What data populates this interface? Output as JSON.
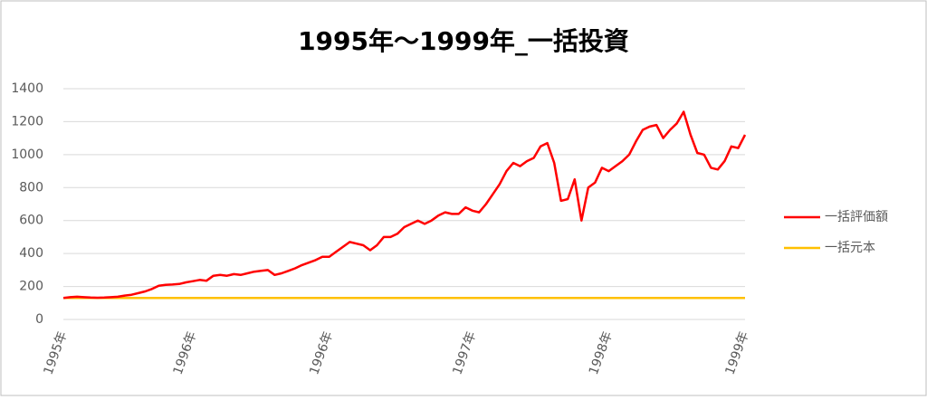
{
  "chart_data": {
    "type": "line",
    "title": "1995年～1999年_一括投資",
    "categories": [
      "1995年",
      null,
      null,
      null,
      null,
      null,
      null,
      null,
      null,
      null,
      null,
      null,
      null,
      null,
      null,
      null,
      null,
      null,
      null,
      "1996年",
      null,
      null,
      null,
      null,
      null,
      null,
      null,
      null,
      null,
      null,
      null,
      null,
      null,
      null,
      null,
      null,
      null,
      null,
      null,
      "1996年",
      null,
      null,
      null,
      null,
      null,
      null,
      null,
      null,
      null,
      null,
      null,
      null,
      null,
      null,
      null,
      null,
      null,
      null,
      null,
      null,
      "1997年",
      null,
      null,
      null,
      null,
      null,
      null,
      null,
      null,
      null,
      null,
      null,
      null,
      null,
      null,
      null,
      null,
      null,
      null,
      null,
      "1998年",
      null,
      null,
      null,
      null,
      null,
      null,
      null,
      null,
      null,
      null,
      null,
      null,
      null,
      null,
      null,
      null,
      null,
      null,
      null,
      "1999年"
    ],
    "series": [
      {
        "name": "一括評価額",
        "color": "#ff0000",
        "values": [
          130,
          135,
          138,
          135,
          133,
          132,
          133,
          135,
          138,
          145,
          150,
          160,
          170,
          185,
          205,
          210,
          212,
          215,
          225,
          232,
          240,
          235,
          265,
          270,
          265,
          275,
          270,
          280,
          290,
          295,
          300,
          270,
          280,
          295,
          310,
          330,
          345,
          360,
          380,
          380,
          410,
          440,
          470,
          460,
          450,
          420,
          450,
          500,
          500,
          520,
          560,
          580,
          600,
          580,
          600,
          630,
          650,
          640,
          640,
          680,
          660,
          650,
          700,
          760,
          820,
          900,
          950,
          930,
          960,
          980,
          1050,
          1070,
          950,
          720,
          730,
          850,
          600,
          800,
          830,
          920,
          900,
          930,
          960,
          1000,
          1080,
          1150,
          1170,
          1180,
          1100,
          1150,
          1190,
          1260,
          1120,
          1010,
          1000,
          920,
          910,
          960,
          1050,
          1040,
          1120
        ]
      },
      {
        "name": "一括元本",
        "color": "#ffc000",
        "values": [
          130,
          130,
          130,
          130,
          130,
          130,
          130,
          130,
          130,
          130,
          130,
          130,
          130,
          130,
          130,
          130,
          130,
          130,
          130,
          130,
          130,
          130,
          130,
          130,
          130,
          130,
          130,
          130,
          130,
          130,
          130,
          130,
          130,
          130,
          130,
          130,
          130,
          130,
          130,
          130,
          130,
          130,
          130,
          130,
          130,
          130,
          130,
          130,
          130,
          130,
          130,
          130,
          130,
          130,
          130,
          130,
          130,
          130,
          130,
          130,
          130,
          130,
          130,
          130,
          130,
          130,
          130,
          130,
          130,
          130,
          130,
          130,
          130,
          130,
          130,
          130,
          130,
          130,
          130,
          130,
          130,
          130,
          130,
          130,
          130,
          130,
          130,
          130,
          130,
          130,
          130,
          130,
          130,
          130,
          130,
          130,
          130,
          130,
          130,
          130,
          130
        ]
      }
    ],
    "ylim": [
      0,
      1400
    ],
    "yticks": [
      0,
      200,
      400,
      600,
      800,
      1000,
      1200,
      1400
    ],
    "grid": true,
    "legend": "right"
  }
}
